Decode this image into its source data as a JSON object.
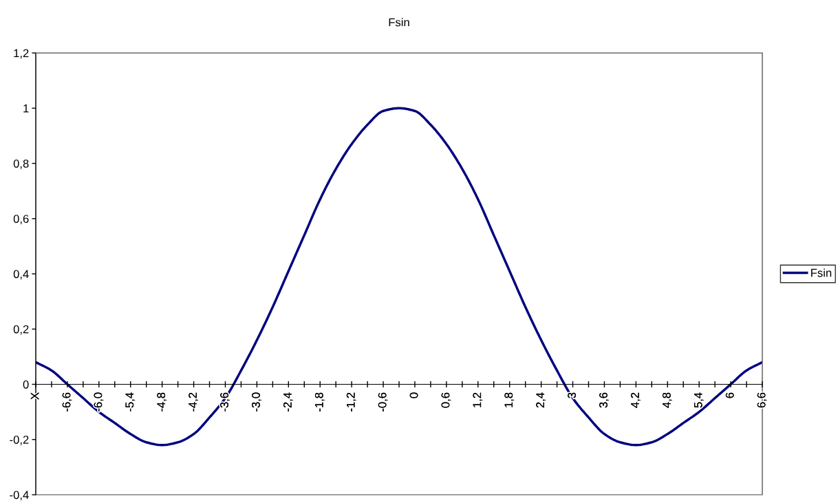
{
  "chart_data": {
    "type": "line",
    "title": "Fsin",
    "categories": [
      "X",
      null,
      "-6,6",
      null,
      "-6,0",
      null,
      "-5,4",
      null,
      "-4,8",
      null,
      "-4,2",
      null,
      "-3,6",
      null,
      "-3,0",
      null,
      "-2,4",
      null,
      "-1,8",
      null,
      "-1,2",
      null,
      "-0,6",
      null,
      "0",
      null,
      "0,6",
      null,
      "1,2",
      null,
      "1,8",
      null,
      "2,4",
      null,
      "3",
      null,
      "3,6",
      null,
      "4,2",
      null,
      "4,8",
      null,
      "5,4",
      null,
      "6",
      null,
      "6,6"
    ],
    "series": [
      {
        "name": "Fsin",
        "color": "#000080",
        "values": [
          0.08,
          0.05,
          0.0,
          -0.05,
          -0.1,
          -0.14,
          -0.18,
          -0.21,
          -0.22,
          -0.21,
          -0.18,
          -0.12,
          -0.05,
          0.05,
          0.16,
          0.28,
          0.41,
          0.54,
          0.67,
          0.78,
          0.87,
          0.94,
          0.99,
          1.0,
          0.99,
          0.94,
          0.87,
          0.78,
          0.67,
          0.54,
          0.41,
          0.28,
          0.16,
          0.05,
          -0.05,
          -0.12,
          -0.18,
          -0.21,
          -0.22,
          -0.21,
          -0.18,
          -0.14,
          -0.1,
          -0.05,
          0.0,
          0.05,
          0.08
        ]
      }
    ],
    "ylim": [
      -0.4,
      1.2
    ],
    "yticks": [
      {
        "value": -0.4,
        "label": "-0,4"
      },
      {
        "value": -0.2,
        "label": "-0,2"
      },
      0,
      {
        "value": 0.2,
        "label": "0,2"
      },
      {
        "value": 0.4,
        "label": "0,4"
      },
      {
        "value": 0.6,
        "label": "0,6"
      },
      {
        "value": 0.8,
        "label": "0,8"
      },
      1,
      {
        "value": 1.2,
        "label": "1,2"
      }
    ],
    "legend": "right",
    "line_style": "solid"
  }
}
